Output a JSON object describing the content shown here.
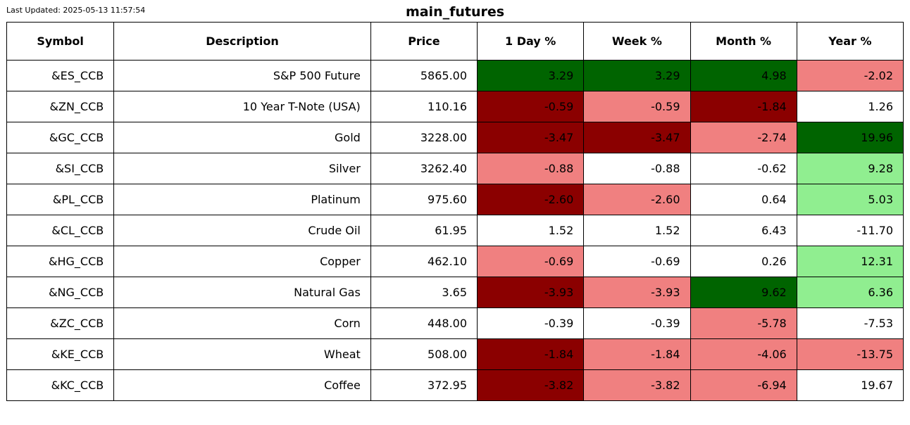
{
  "last_updated": "Last Updated: 2025-05-13 11:57:54",
  "title": "main_futures",
  "colors": {
    "strong_positive": "#006400",
    "positive": "#90ee90",
    "neutral": "#ffffff",
    "negative": "#f08080",
    "strong_negative": "#8b0000"
  },
  "chart_data": {
    "type": "table",
    "title": "main_futures",
    "columns": [
      "Symbol",
      "Description",
      "Price",
      "1 Day %",
      "Week %",
      "Month %",
      "Year %"
    ],
    "rows": [
      {
        "symbol": "&ES_CCB",
        "description": "S&P 500 Future",
        "price": "5865.00",
        "day": "3.29",
        "week": "3.29",
        "month": "4.98",
        "year": "-2.02",
        "colors": [
          "strong_positive",
          "strong_positive",
          "strong_positive",
          "negative"
        ]
      },
      {
        "symbol": "&ZN_CCB",
        "description": "10 Year T-Note (USA)",
        "price": "110.16",
        "day": "-0.59",
        "week": "-0.59",
        "month": "-1.84",
        "year": "1.26",
        "colors": [
          "strong_negative",
          "negative",
          "strong_negative",
          "neutral"
        ]
      },
      {
        "symbol": "&GC_CCB",
        "description": "Gold",
        "price": "3228.00",
        "day": "-3.47",
        "week": "-3.47",
        "month": "-2.74",
        "year": "19.96",
        "colors": [
          "strong_negative",
          "strong_negative",
          "negative",
          "strong_positive"
        ]
      },
      {
        "symbol": "&SI_CCB",
        "description": "Silver",
        "price": "3262.40",
        "day": "-0.88",
        "week": "-0.88",
        "month": "-0.62",
        "year": "9.28",
        "colors": [
          "negative",
          "neutral",
          "neutral",
          "positive"
        ]
      },
      {
        "symbol": "&PL_CCB",
        "description": "Platinum",
        "price": "975.60",
        "day": "-2.60",
        "week": "-2.60",
        "month": "0.64",
        "year": "5.03",
        "colors": [
          "strong_negative",
          "negative",
          "neutral",
          "positive"
        ]
      },
      {
        "symbol": "&CL_CCB",
        "description": "Crude Oil",
        "price": "61.95",
        "day": "1.52",
        "week": "1.52",
        "month": "6.43",
        "year": "-11.70",
        "colors": [
          "neutral",
          "neutral",
          "neutral",
          "neutral"
        ]
      },
      {
        "symbol": "&HG_CCB",
        "description": "Copper",
        "price": "462.10",
        "day": "-0.69",
        "week": "-0.69",
        "month": "0.26",
        "year": "12.31",
        "colors": [
          "negative",
          "neutral",
          "neutral",
          "positive"
        ]
      },
      {
        "symbol": "&NG_CCB",
        "description": "Natural Gas",
        "price": "3.65",
        "day": "-3.93",
        "week": "-3.93",
        "month": "9.62",
        "year": "6.36",
        "colors": [
          "strong_negative",
          "negative",
          "strong_positive",
          "positive"
        ]
      },
      {
        "symbol": "&ZC_CCB",
        "description": "Corn",
        "price": "448.00",
        "day": "-0.39",
        "week": "-0.39",
        "month": "-5.78",
        "year": "-7.53",
        "colors": [
          "neutral",
          "neutral",
          "negative",
          "neutral"
        ]
      },
      {
        "symbol": "&KE_CCB",
        "description": "Wheat",
        "price": "508.00",
        "day": "-1.84",
        "week": "-1.84",
        "month": "-4.06",
        "year": "-13.75",
        "colors": [
          "strong_negative",
          "negative",
          "negative",
          "negative"
        ]
      },
      {
        "symbol": "&KC_CCB",
        "description": "Coffee",
        "price": "372.95",
        "day": "-3.82",
        "week": "-3.82",
        "month": "-6.94",
        "year": "19.67",
        "colors": [
          "strong_negative",
          "negative",
          "negative",
          "neutral"
        ]
      }
    ]
  }
}
